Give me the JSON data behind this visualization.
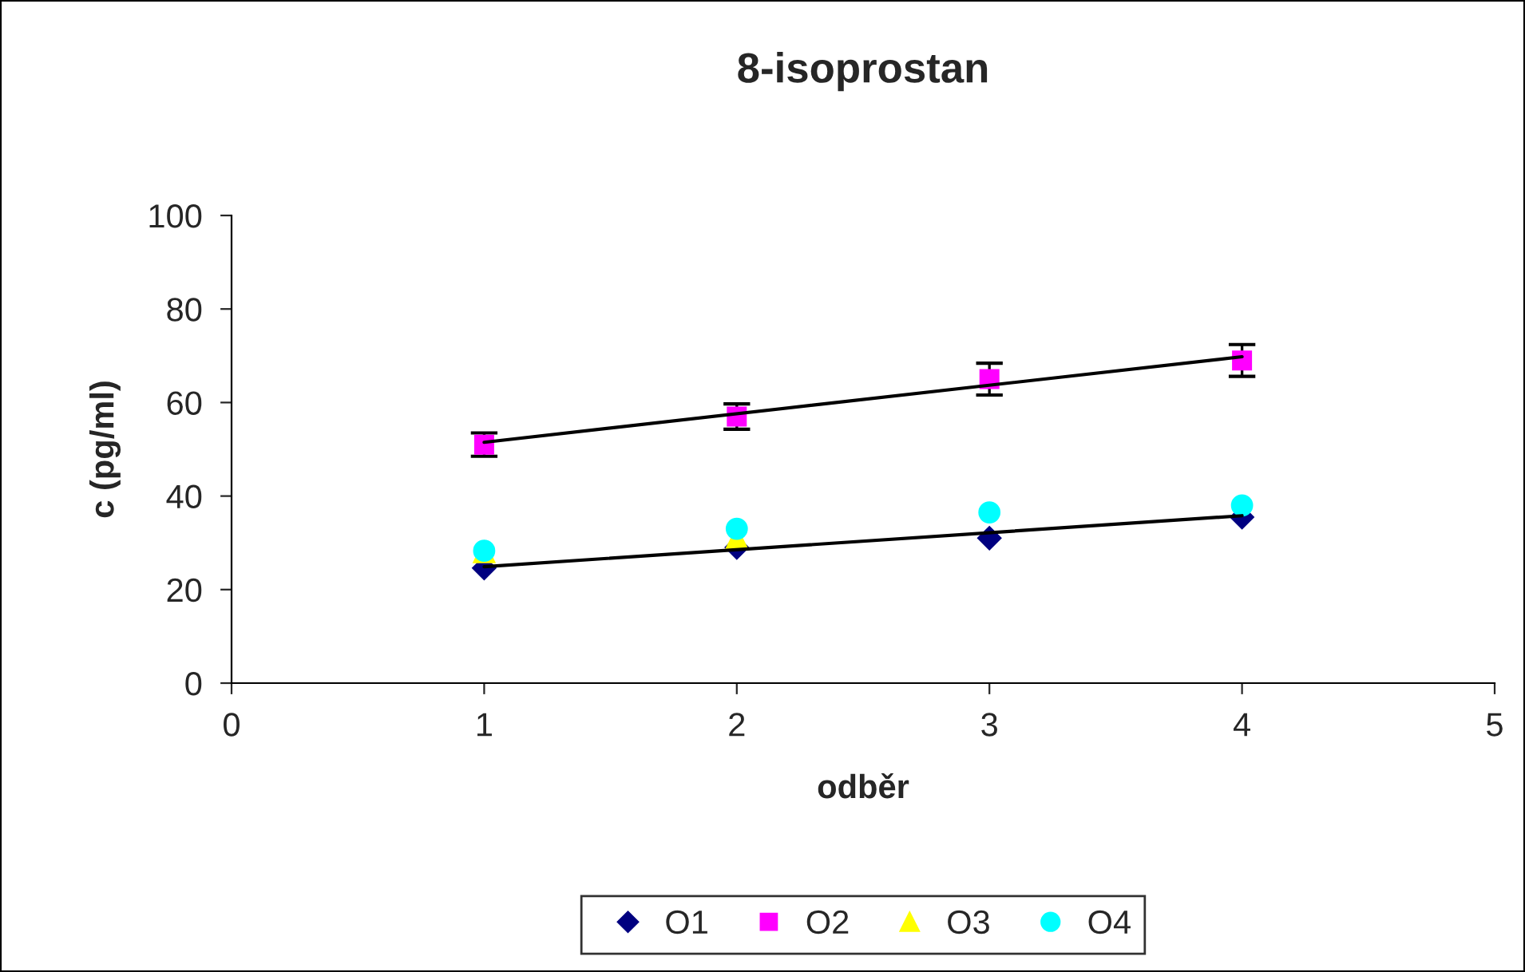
{
  "chart_data": {
    "type": "scatter",
    "title": "8-isoprostan",
    "xlabel": "odběr",
    "ylabel": "c (pg/ml)",
    "xlim": [
      0,
      5
    ],
    "xticks": [
      0,
      1,
      2,
      3,
      4,
      5
    ],
    "ylim": [
      0,
      100
    ],
    "yticks": [
      0,
      20,
      40,
      60,
      80,
      100
    ],
    "grid": false,
    "legend": "bottom",
    "series": [
      {
        "name": "O1",
        "color": "#000080",
        "marker": "diamond",
        "x": [
          1,
          2,
          3,
          4
        ],
        "values": [
          24.6,
          29,
          31,
          35.5
        ]
      },
      {
        "name": "O2",
        "color": "#ff00ff",
        "marker": "square",
        "x": [
          1,
          2,
          3,
          4
        ],
        "values": [
          51,
          57,
          65,
          69
        ],
        "errors": [
          2.5,
          2.7,
          3.4,
          3.4
        ]
      },
      {
        "name": "O3",
        "color": "#ffff00",
        "marker": "triangle",
        "x": [
          1,
          2
        ],
        "values": [
          28,
          31
        ]
      },
      {
        "name": "O4",
        "color": "#00ffff",
        "marker": "circle",
        "x": [
          1,
          2,
          3,
          4
        ],
        "values": [
          28.3,
          33,
          36.5,
          38
        ]
      },
      {
        "type": "line",
        "color": "#000000",
        "marker": "none",
        "x": [
          1,
          4
        ],
        "values": [
          51.5,
          69.8
        ]
      },
      {
        "type": "line",
        "color": "#000000",
        "marker": "none",
        "x": [
          1,
          4
        ],
        "values": [
          24.9,
          35.8
        ]
      }
    ]
  }
}
